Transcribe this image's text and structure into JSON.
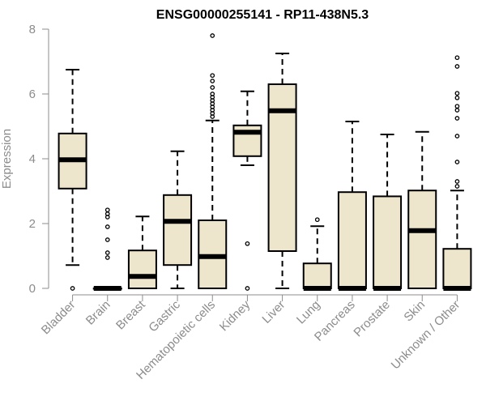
{
  "chart_data": {
    "type": "boxplot",
    "title": "ENSG00000255141 - RP11-438N5.3",
    "xlabel": "",
    "ylabel": "Expression",
    "ylim": [
      0,
      8
    ],
    "yticks": [
      0,
      2,
      4,
      6,
      8
    ],
    "box_fill": "#ede6cc",
    "stroke": "#000000",
    "axis_color": "#8c8c8c",
    "categories": [
      "Bladder",
      "Brain",
      "Breast",
      "Gastric",
      "Hematopoietic cells",
      "Kidney",
      "Liver",
      "Lung",
      "Pancreas",
      "Prostate",
      "Skin",
      "Unknown / Other"
    ],
    "boxes": [
      {
        "name": "Bladder",
        "q1": 3.08,
        "median": 3.97,
        "q3": 4.78,
        "whisker_low": 0.72,
        "whisker_high": 6.75,
        "outliers": [
          0.0
        ]
      },
      {
        "name": "Brain",
        "q1": 0.0,
        "median": 0.0,
        "q3": 0.0,
        "whisker_low": 0.0,
        "whisker_high": 0.0,
        "outliers": [
          0.95,
          1.1,
          1.5,
          1.9,
          2.2,
          2.3,
          2.42
        ]
      },
      {
        "name": "Breast",
        "q1": 0.0,
        "median": 0.37,
        "q3": 1.17,
        "whisker_low": 0.0,
        "whisker_high": 2.22,
        "outliers": []
      },
      {
        "name": "Gastric",
        "q1": 0.72,
        "median": 2.07,
        "q3": 2.88,
        "whisker_low": 0.0,
        "whisker_high": 4.23,
        "outliers": []
      },
      {
        "name": "Hematopoietic cells",
        "q1": 0.0,
        "median": 0.98,
        "q3": 2.1,
        "whisker_low": 0.0,
        "whisker_high": 5.18,
        "outliers": [
          5.3,
          5.4,
          5.5,
          5.6,
          5.7,
          5.8,
          5.9,
          6.0,
          6.2,
          6.4,
          6.57,
          7.8
        ]
      },
      {
        "name": "Kidney",
        "q1": 4.08,
        "median": 4.82,
        "q3": 5.03,
        "whisker_low": 3.8,
        "whisker_high": 6.08,
        "outliers": [
          1.38,
          0.0
        ]
      },
      {
        "name": "Liver",
        "q1": 1.15,
        "median": 5.48,
        "q3": 6.3,
        "whisker_low": 0.0,
        "whisker_high": 7.25,
        "outliers": []
      },
      {
        "name": "Lung",
        "q1": 0.0,
        "median": 0.0,
        "q3": 0.77,
        "whisker_low": 0.0,
        "whisker_high": 1.92,
        "outliers": [
          2.12
        ]
      },
      {
        "name": "Pancreas",
        "q1": 0.0,
        "median": 0.0,
        "q3": 2.97,
        "whisker_low": 0.0,
        "whisker_high": 5.15,
        "outliers": []
      },
      {
        "name": "Prostate",
        "q1": 0.0,
        "median": 0.0,
        "q3": 2.84,
        "whisker_low": 0.0,
        "whisker_high": 4.75,
        "outliers": []
      },
      {
        "name": "Skin",
        "q1": 0.0,
        "median": 1.78,
        "q3": 3.02,
        "whisker_low": 0.0,
        "whisker_high": 4.83,
        "outliers": []
      },
      {
        "name": "Unknown / Other",
        "q1": 0.0,
        "median": 0.0,
        "q3": 1.22,
        "whisker_low": 0.0,
        "whisker_high": 3.02,
        "outliers": [
          3.15,
          3.3,
          3.9,
          4.7,
          5.25,
          5.5,
          5.62,
          5.88,
          6.02,
          6.85,
          7.12
        ]
      }
    ]
  }
}
